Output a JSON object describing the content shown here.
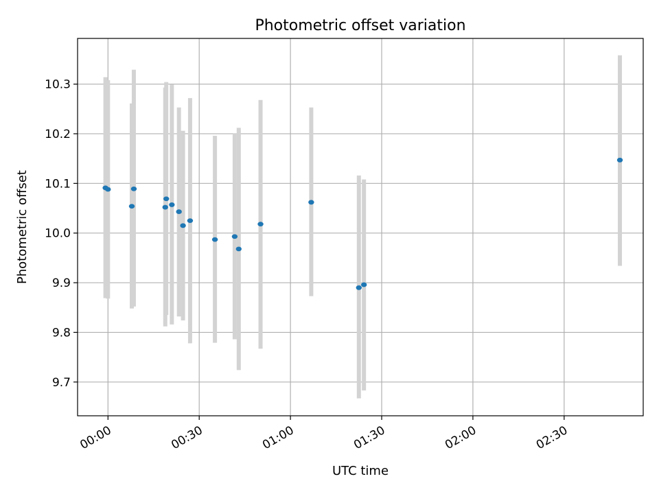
{
  "chart_data": {
    "type": "scatter",
    "title": "Photometric offset variation",
    "xlabel": "UTC time",
    "ylabel": "Photometric offset",
    "xlim": [
      "23:50",
      "02:56"
    ],
    "ylim": [
      9.632,
      10.392
    ],
    "grid": true,
    "x_ticks": [
      "00:00",
      "00:30",
      "01:00",
      "01:30",
      "02:00",
      "02:30"
    ],
    "y_ticks": [
      "9.7",
      "9.8",
      "9.9",
      "10.0",
      "10.1",
      "10.2",
      "10.3"
    ],
    "colors": {
      "point": "#1f77b4",
      "error_bar": "#d3d3d3",
      "grid": "#b0b0b0"
    },
    "points": [
      {
        "x": "23:59:10",
        "y": 10.091,
        "ylow": 9.869,
        "yhigh": 10.314
      },
      {
        "x": "00:00:00",
        "y": 10.088,
        "ylow": 9.868,
        "yhigh": 10.308
      },
      {
        "x": "00:07:50",
        "y": 10.054,
        "ylow": 9.848,
        "yhigh": 10.261
      },
      {
        "x": "00:08:30",
        "y": 10.089,
        "ylow": 9.852,
        "yhigh": 10.329
      },
      {
        "x": "00:18:50",
        "y": 10.052,
        "ylow": 9.812,
        "yhigh": 10.293
      },
      {
        "x": "00:19:10",
        "y": 10.069,
        "ylow": 9.835,
        "yhigh": 10.304
      },
      {
        "x": "00:21:00",
        "y": 10.057,
        "ylow": 9.816,
        "yhigh": 10.299
      },
      {
        "x": "00:23:20",
        "y": 10.043,
        "ylow": 9.832,
        "yhigh": 10.253
      },
      {
        "x": "00:24:40",
        "y": 10.015,
        "ylow": 9.824,
        "yhigh": 10.206
      },
      {
        "x": "00:27:00",
        "y": 10.025,
        "ylow": 9.778,
        "yhigh": 10.272
      },
      {
        "x": "00:35:10",
        "y": 9.987,
        "ylow": 9.779,
        "yhigh": 10.196
      },
      {
        "x": "00:41:40",
        "y": 9.993,
        "ylow": 9.786,
        "yhigh": 10.201
      },
      {
        "x": "00:43:00",
        "y": 9.968,
        "ylow": 9.724,
        "yhigh": 10.212
      },
      {
        "x": "00:50:10",
        "y": 10.018,
        "ylow": 9.767,
        "yhigh": 10.268
      },
      {
        "x": "01:06:50",
        "y": 10.062,
        "ylow": 9.873,
        "yhigh": 10.253
      },
      {
        "x": "01:22:30",
        "y": 9.89,
        "ylow": 9.667,
        "yhigh": 10.116
      },
      {
        "x": "01:24:10",
        "y": 9.896,
        "ylow": 9.683,
        "yhigh": 10.108
      },
      {
        "x": "02:48:20",
        "y": 10.147,
        "ylow": 9.934,
        "yhigh": 10.358
      }
    ]
  }
}
